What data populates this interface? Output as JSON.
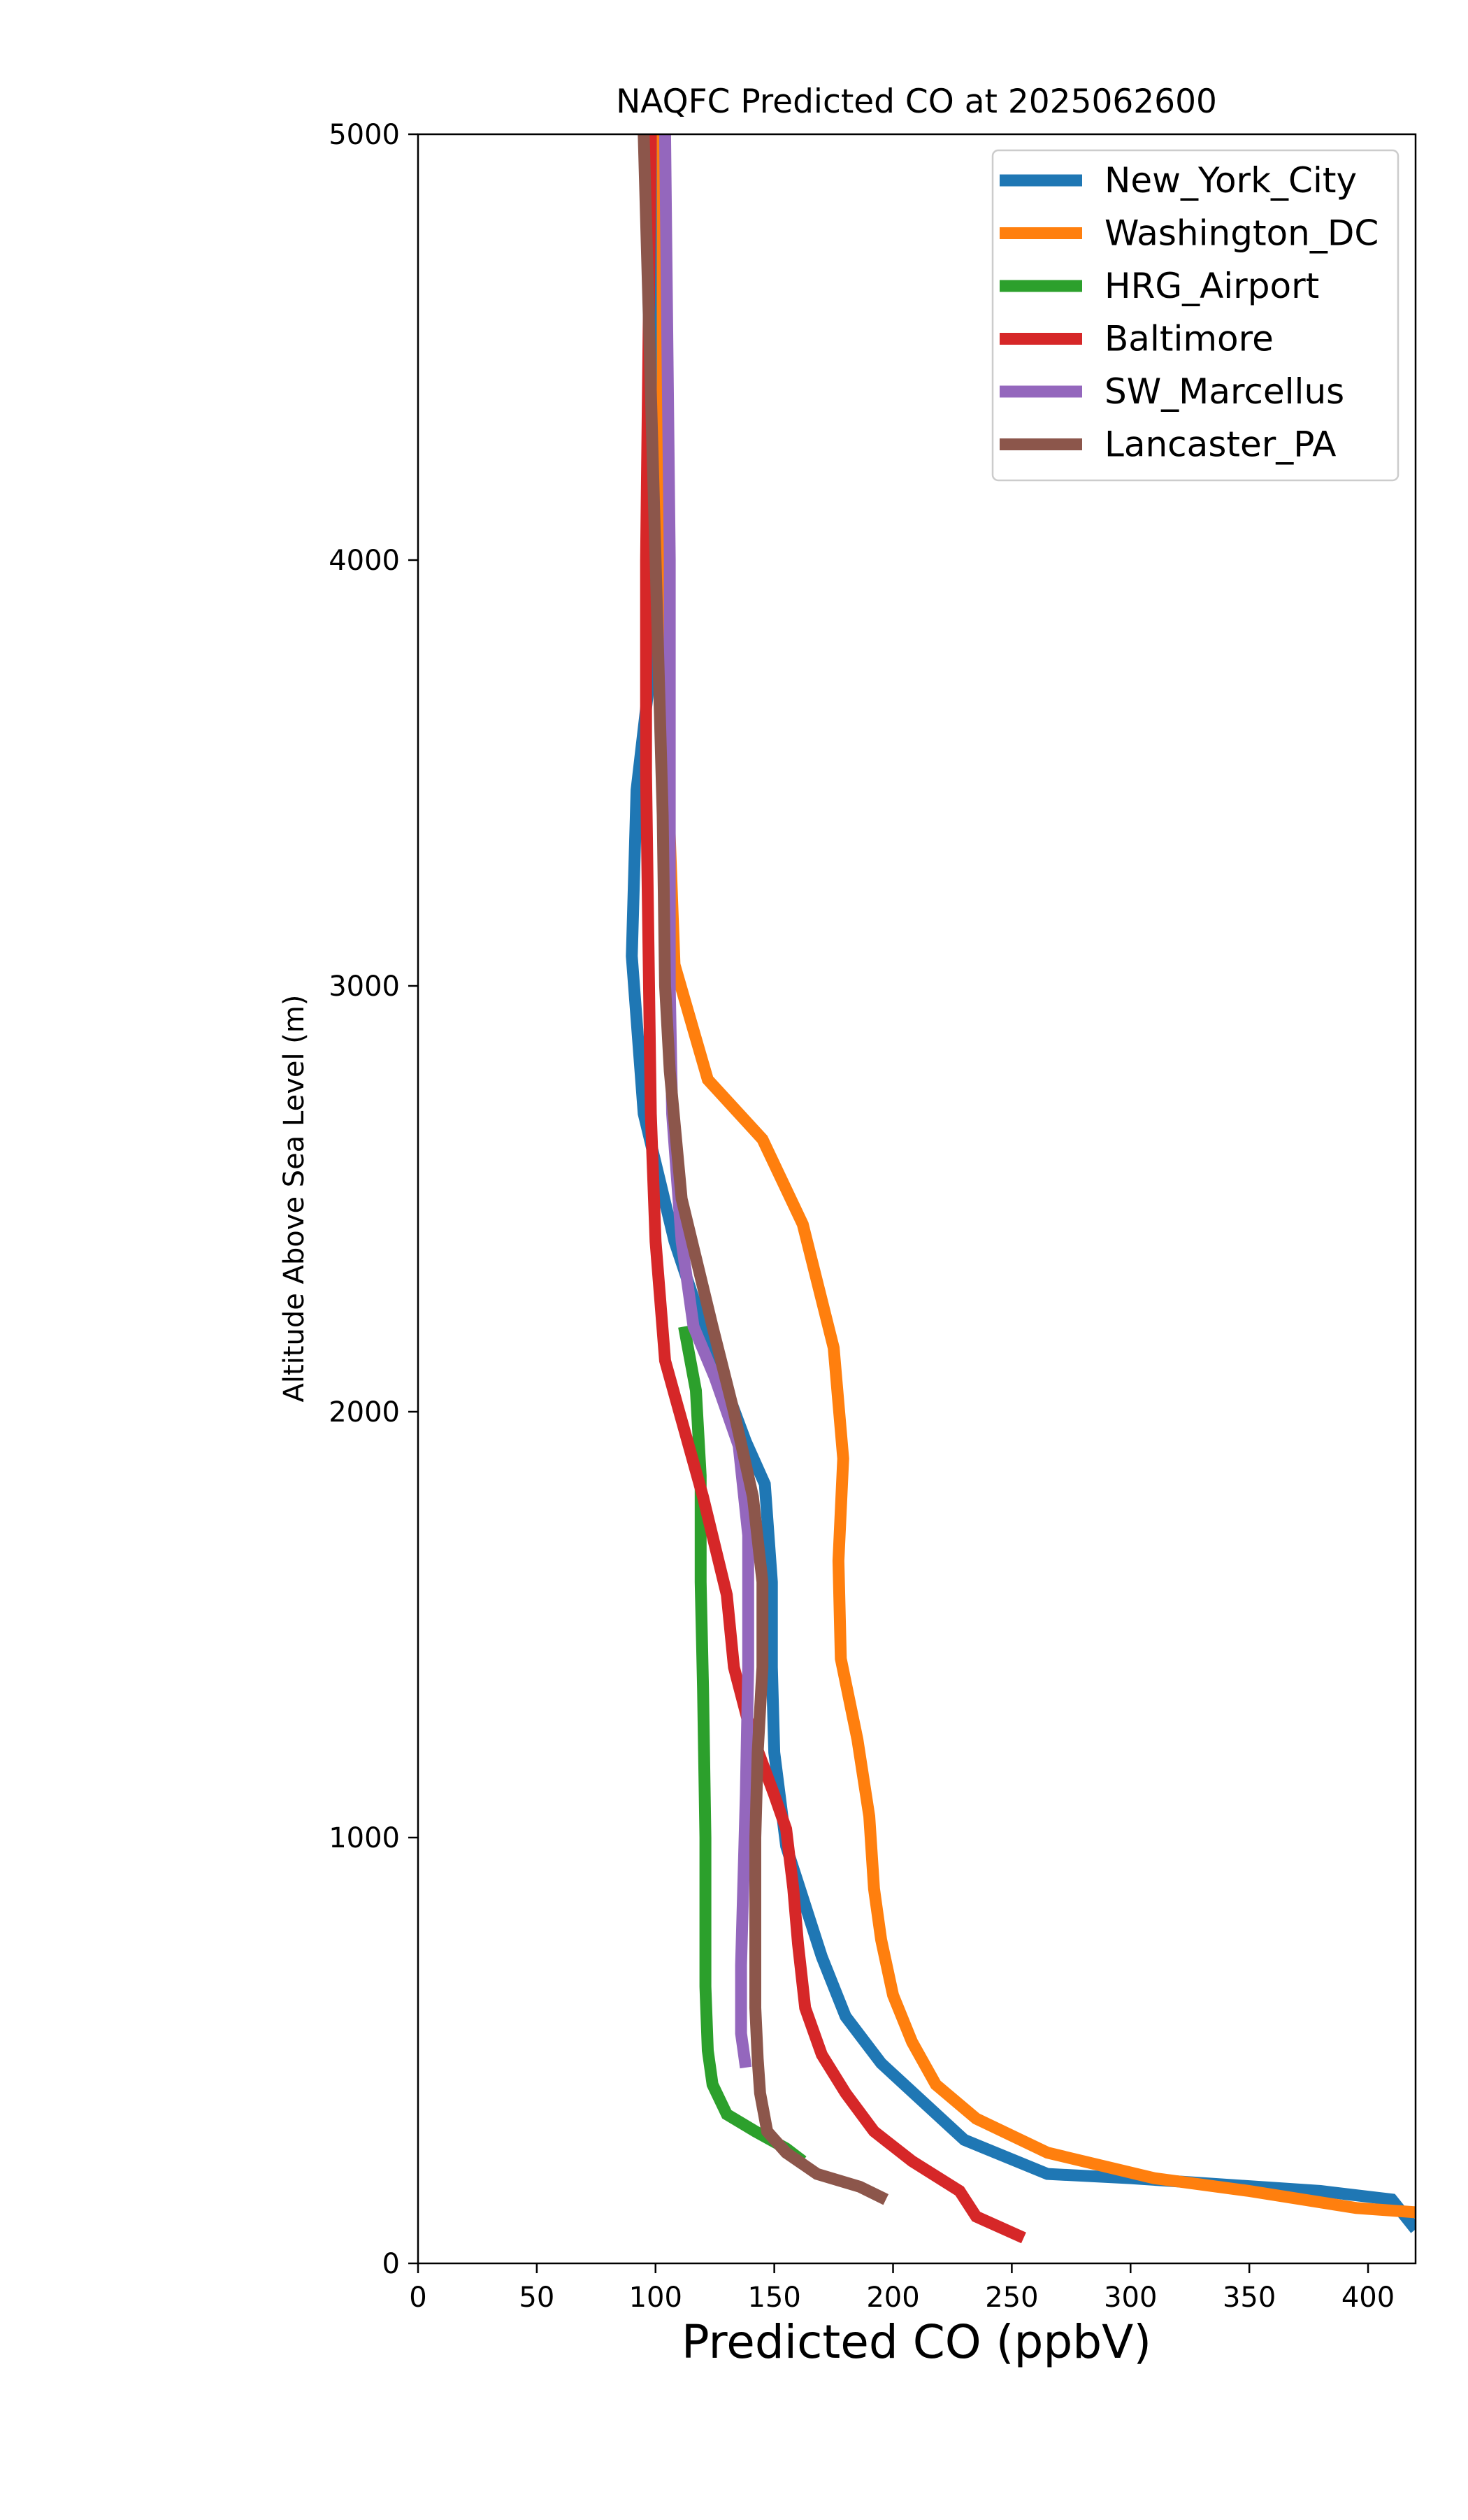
{
  "chart_data": {
    "type": "line",
    "title": "NAQFC Predicted CO at 2025062600",
    "xlabel": "Predicted CO (ppbV)",
    "ylabel": "Altitude Above Sea Level (m)",
    "xlim": [
      0,
      420
    ],
    "ylim": [
      0,
      5000
    ],
    "xticks": [
      0,
      50,
      100,
      150,
      200,
      250,
      300,
      350,
      400
    ],
    "yticks": [
      0,
      1000,
      2000,
      3000,
      4000,
      5000
    ],
    "grid": false,
    "legend_position": "top-right",
    "series": [
      {
        "name": "New_York_City",
        "color": "#1f77b4",
        "points": [
          [
            420,
            80
          ],
          [
            410,
            150
          ],
          [
            380,
            170
          ],
          [
            300,
            200
          ],
          [
            265,
            210
          ],
          [
            230,
            290
          ],
          [
            195,
            470
          ],
          [
            180,
            580
          ],
          [
            170,
            720
          ],
          [
            155,
            980
          ],
          [
            150,
            1200
          ],
          [
            149,
            1400
          ],
          [
            149,
            1600
          ],
          [
            146,
            1830
          ],
          [
            138,
            1930
          ],
          [
            120,
            2200
          ],
          [
            108,
            2400
          ],
          [
            95,
            2700
          ],
          [
            90,
            3070
          ],
          [
            92,
            3460
          ],
          [
            97,
            3700
          ],
          [
            100,
            4100
          ],
          [
            101,
            4500
          ],
          [
            100,
            5000
          ]
        ]
      },
      {
        "name": "Washington_DC",
        "color": "#ff7f0e",
        "points": [
          [
            420,
            120
          ],
          [
            395,
            130
          ],
          [
            350,
            170
          ],
          [
            310,
            200
          ],
          [
            265,
            260
          ],
          [
            235,
            340
          ],
          [
            218,
            420
          ],
          [
            208,
            520
          ],
          [
            200,
            630
          ],
          [
            195,
            760
          ],
          [
            192,
            880
          ],
          [
            190,
            1050
          ],
          [
            185,
            1230
          ],
          [
            178,
            1420
          ],
          [
            177,
            1650
          ],
          [
            179,
            1890
          ],
          [
            175,
            2150
          ],
          [
            162,
            2440
          ],
          [
            145,
            2640
          ],
          [
            122,
            2780
          ],
          [
            108,
            3050
          ],
          [
            105,
            3500
          ],
          [
            103,
            4000
          ],
          [
            103,
            5000
          ]
        ]
      },
      {
        "name": "HRG_Airport",
        "color": "#2ca02c",
        "points": [
          [
            162,
            240
          ],
          [
            155,
            270
          ],
          [
            142,
            310
          ],
          [
            130,
            350
          ],
          [
            124,
            420
          ],
          [
            122,
            500
          ],
          [
            121,
            650
          ],
          [
            121,
            1000
          ],
          [
            120,
            1350
          ],
          [
            119,
            1600
          ],
          [
            119,
            1850
          ],
          [
            117,
            2050
          ],
          [
            112,
            2200
          ]
        ]
      },
      {
        "name": "Baltimore",
        "color": "#d62728",
        "points": [
          [
            255,
            60
          ],
          [
            235,
            110
          ],
          [
            228,
            170
          ],
          [
            208,
            240
          ],
          [
            192,
            310
          ],
          [
            180,
            400
          ],
          [
            170,
            490
          ],
          [
            163,
            600
          ],
          [
            160,
            750
          ],
          [
            158,
            880
          ],
          [
            155,
            1020
          ],
          [
            150,
            1100
          ],
          [
            140,
            1250
          ],
          [
            133,
            1400
          ],
          [
            130,
            1570
          ],
          [
            120,
            1800
          ],
          [
            110,
            2000
          ],
          [
            104,
            2120
          ],
          [
            100,
            2400
          ],
          [
            98,
            2700
          ],
          [
            97,
            3100
          ],
          [
            96,
            3500
          ],
          [
            96,
            4000
          ],
          [
            98,
            5000
          ]
        ]
      },
      {
        "name": "SW_Marcellus",
        "color": "#9467bd",
        "points": [
          [
            138,
            460
          ],
          [
            136,
            540
          ],
          [
            136,
            700
          ],
          [
            137,
            900
          ],
          [
            138,
            1100
          ],
          [
            139,
            1400
          ],
          [
            139,
            1710
          ],
          [
            135,
            1920
          ],
          [
            125,
            2080
          ],
          [
            116,
            2200
          ],
          [
            111,
            2400
          ],
          [
            107,
            2700
          ],
          [
            106,
            3000
          ],
          [
            106,
            3500
          ],
          [
            106,
            4000
          ],
          [
            104,
            5000
          ]
        ]
      },
      {
        "name": "Lancaster_PA",
        "color": "#8c564b",
        "points": [
          [
            197,
            150
          ],
          [
            186,
            180
          ],
          [
            168,
            210
          ],
          [
            155,
            260
          ],
          [
            147,
            310
          ],
          [
            144,
            400
          ],
          [
            143,
            480
          ],
          [
            142,
            600
          ],
          [
            142,
            800
          ],
          [
            142,
            1000
          ],
          [
            143,
            1200
          ],
          [
            145,
            1400
          ],
          [
            145,
            1600
          ],
          [
            141,
            1800
          ],
          [
            133,
            2000
          ],
          [
            124,
            2200
          ],
          [
            111,
            2500
          ],
          [
            106,
            2800
          ],
          [
            104,
            3000
          ],
          [
            103,
            3400
          ],
          [
            101,
            3800
          ],
          [
            99,
            4200
          ],
          [
            97,
            4600
          ],
          [
            95,
            5000
          ]
        ]
      }
    ]
  }
}
